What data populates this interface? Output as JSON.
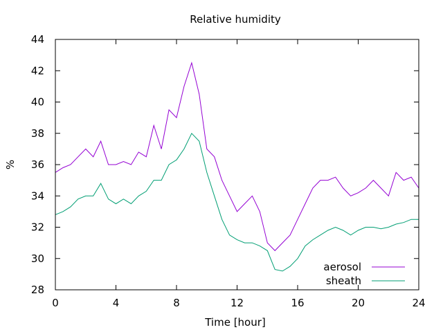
{
  "chart_data": {
    "type": "line",
    "title": "Relative humidity",
    "xlabel": "Time [hour]",
    "ylabel": "%",
    "xlim": [
      0,
      24
    ],
    "ylim": [
      28,
      44
    ],
    "x_ticks": [
      0,
      4,
      8,
      12,
      16,
      20,
      24
    ],
    "y_ticks": [
      28,
      30,
      32,
      34,
      36,
      38,
      40,
      42,
      44
    ],
    "grid": false,
    "legend_position": "bottom-right",
    "x": [
      0,
      0.5,
      1,
      1.5,
      2,
      2.5,
      3,
      3.5,
      4,
      4.5,
      5,
      5.5,
      6,
      6.5,
      7,
      7.5,
      8,
      8.5,
      9,
      9.5,
      10,
      10.5,
      11,
      11.5,
      12,
      12.5,
      13,
      13.5,
      14,
      14.5,
      15,
      15.5,
      16,
      16.5,
      17,
      17.5,
      18,
      18.5,
      19,
      19.5,
      20,
      20.5,
      21,
      21.5,
      22,
      22.5,
      23,
      23.5,
      24
    ],
    "series": [
      {
        "name": "aerosol",
        "color": "#9400d3",
        "values": [
          35.5,
          35.8,
          36.0,
          36.5,
          37.0,
          36.5,
          37.5,
          36.0,
          36.0,
          36.2,
          36.0,
          36.8,
          36.5,
          38.5,
          37.0,
          39.5,
          39.0,
          41.0,
          42.5,
          40.5,
          37.0,
          36.5,
          35.0,
          34.0,
          33.0,
          33.5,
          34.0,
          33.0,
          31.0,
          30.5,
          31.0,
          31.5,
          32.5,
          33.5,
          34.5,
          35.0,
          35.0,
          35.2,
          34.5,
          34.0,
          34.2,
          34.5,
          35.0,
          34.5,
          34.0,
          35.5,
          35.0,
          35.2,
          34.5
        ]
      },
      {
        "name": "sheath",
        "color": "#009e73",
        "values": [
          32.8,
          33.0,
          33.3,
          33.8,
          34.0,
          34.0,
          34.8,
          33.8,
          33.5,
          33.8,
          33.5,
          34.0,
          34.3,
          35.0,
          35.0,
          36.0,
          36.3,
          37.0,
          38.0,
          37.5,
          35.5,
          34.0,
          32.5,
          31.5,
          31.2,
          31.0,
          31.0,
          30.8,
          30.5,
          29.3,
          29.2,
          29.5,
          30.0,
          30.8,
          31.2,
          31.5,
          31.8,
          32.0,
          31.8,
          31.5,
          31.8,
          32.0,
          32.0,
          31.9,
          32.0,
          32.2,
          32.3,
          32.5,
          32.5
        ]
      }
    ]
  }
}
